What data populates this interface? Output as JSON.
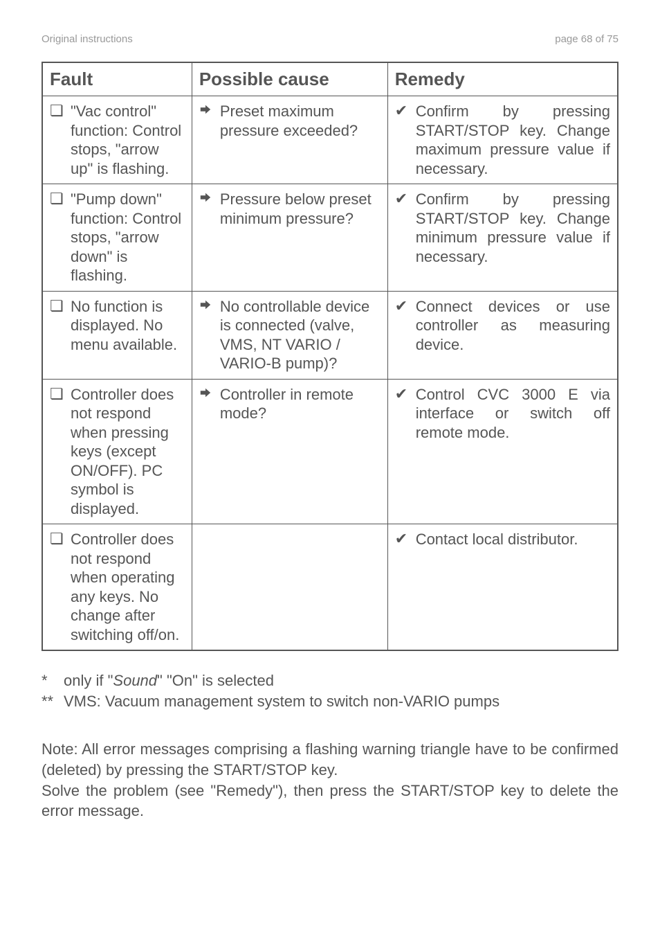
{
  "header": {
    "left": "Original instructions",
    "right": "page 68 of 75"
  },
  "table": {
    "headers": {
      "fault": "Fault",
      "cause": "Possible cause",
      "remedy": "Remedy"
    },
    "rows": [
      {
        "fault": "\"Vac control\" function: Control stops, \"arrow up\" is flashing.",
        "cause": "Preset maximum pressure exceeded?",
        "remedy": "Confirm by pressing START/STOP key. Change maximum pressure value if necessary."
      },
      {
        "fault": "\"Pump down\" function: Control stops, \"arrow down\" is flashing.",
        "cause": "Pressure below preset minimum pressure?",
        "remedy": "Confirm by pressing START/STOP key. Change minimum pressure value if necessary."
      },
      {
        "fault": "No function is displayed. No menu available.",
        "cause": "No controllable device is connected (valve, VMS, NT VARIO / VARIO-B pump)?",
        "remedy": "Connect devices or use controller as measuring device."
      },
      {
        "fault": "Controller does not respond when pressing keys (except ON/OFF). PC symbol is displayed.",
        "cause": "Controller in remote mode?",
        "remedy": "Control CVC 3000 E via interface or switch off remote mode."
      },
      {
        "fault": "Controller does not respond when operating any keys. No change after switching off/on.",
        "cause": "",
        "remedy": "Contact local distributor."
      }
    ]
  },
  "footnotes": {
    "line1_prefix": "only if \"",
    "line1_italic": "Sound",
    "line1_suffix": "\" \"On\"  is selected",
    "line2": "VMS: Vacuum management system to  switch non-VARIO pumps"
  },
  "note": {
    "p1": "Note: All error messages comprising a flashing warning triangle have to be confirmed (deleted) by pressing the START/STOP key.",
    "p2": "Solve the problem (see \"Remedy\"), then press the START/STOP key to delete the error message."
  },
  "icons": {
    "square": "❏",
    "check": "✔",
    "arrow_color": "#555555"
  }
}
